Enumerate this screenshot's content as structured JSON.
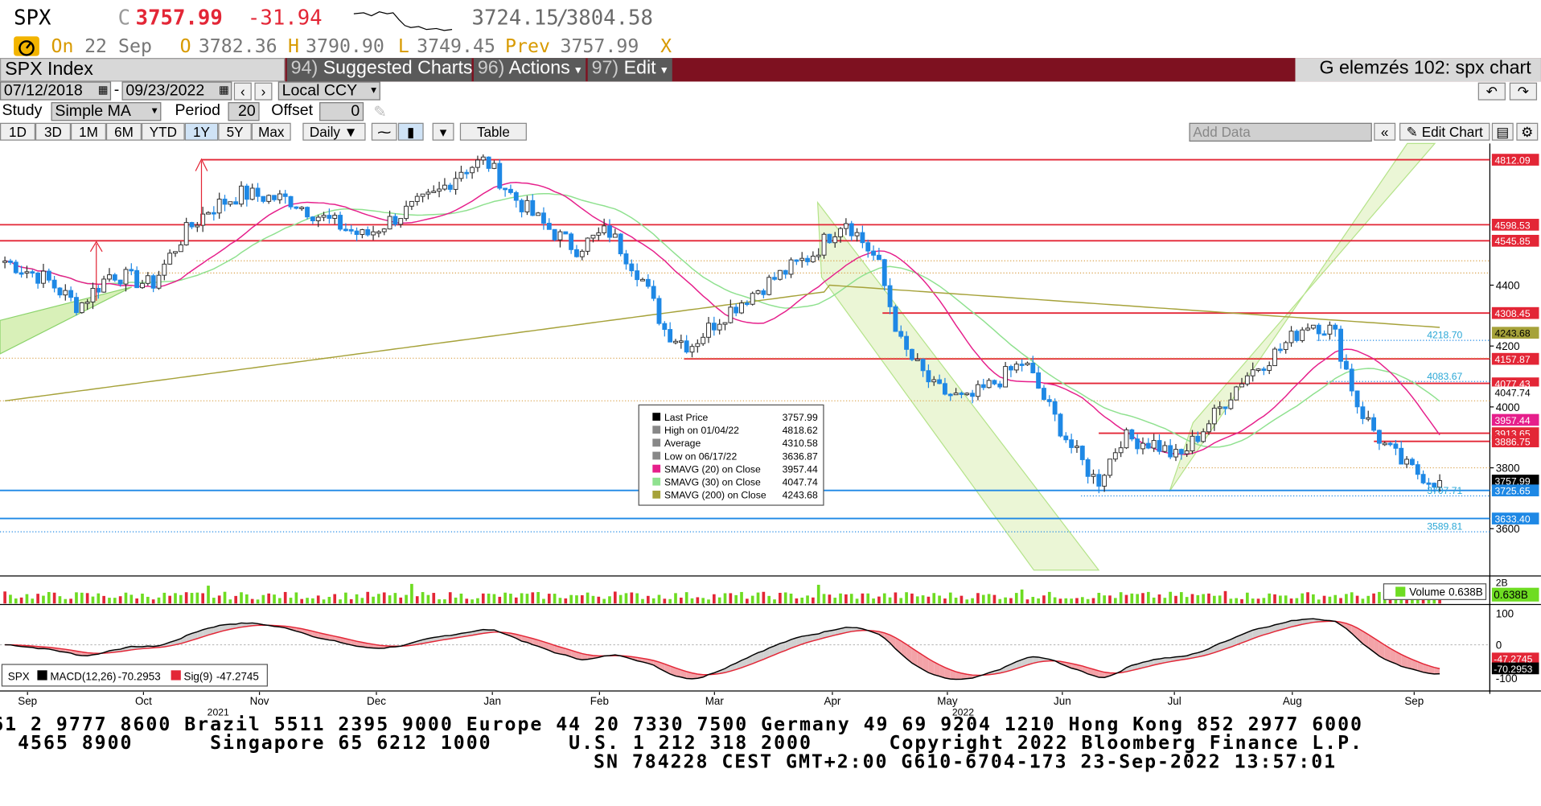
{
  "ticker": {
    "symbol": "SPX",
    "c_label": "C",
    "last": "3757.99",
    "change": "-31.94",
    "range_low": "3724.15",
    "range_sep": "/",
    "range_high": "3804.58"
  },
  "quote": {
    "on_label": "On",
    "date": "22 Sep",
    "o_label": "O",
    "open": "3782.36",
    "h_label": "H",
    "high": "3790.90",
    "l_label": "L",
    "low": "3749.45",
    "prev_label": "Prev",
    "prev": "3757.99",
    "close_x": "X"
  },
  "menu": {
    "security": "SPX Index",
    "suggested_num": "94)",
    "suggested": "Suggested Charts",
    "actions_num": "96)",
    "actions": "Actions",
    "edit_num": "97)",
    "edit": "Edit",
    "title": "G elemzés 102: spx chart"
  },
  "toolbar": {
    "date_from": "07/12/2018",
    "date_sep": "-",
    "date_to": "09/23/2022",
    "currency": "Local CCY"
  },
  "study": {
    "label": "Study",
    "value": "Simple MA",
    "period_label": "Period",
    "period": "20",
    "offset_label": "Offset",
    "offset": "0"
  },
  "ranges": [
    "1D",
    "3D",
    "1M",
    "6M",
    "YTD",
    "1Y",
    "5Y",
    "Max"
  ],
  "active_range": "1Y",
  "frequency": "Daily",
  "table_label": "Table",
  "add_data_placeholder": "Add Data",
  "edit_chart": "Edit Chart",
  "axis_labels": [
    "4400",
    "4200",
    "4000",
    "3800",
    "3600"
  ],
  "price_tags": [
    {
      "text": "4812.09",
      "bg": "#e32636",
      "fg": "#ffffff"
    },
    {
      "text": "4598.53",
      "bg": "#e32636",
      "fg": "#ffffff"
    },
    {
      "text": "4545.85",
      "bg": "#e32636",
      "fg": "#ffffff"
    },
    {
      "text": "4308.45",
      "bg": "#e32636",
      "fg": "#ffffff"
    },
    {
      "text": "4243.68",
      "bg": "#a6a23a",
      "fg": "#000000"
    },
    {
      "text": "4157.87",
      "bg": "#e32636",
      "fg": "#ffffff"
    },
    {
      "text": "4077.43",
      "bg": "#e32636",
      "fg": "#ffffff"
    },
    {
      "text": "4047.74",
      "bg": "#ffffff",
      "fg": "#000000"
    },
    {
      "text": "3957.44",
      "bg": "#e61f8b",
      "fg": "#ffffff"
    },
    {
      "text": "3913.65",
      "bg": "#e32636",
      "fg": "#ffffff"
    },
    {
      "text": "3886.75",
      "bg": "#e32636",
      "fg": "#ffffff"
    },
    {
      "text": "3757.99",
      "bg": "#000000",
      "fg": "#ffffff"
    },
    {
      "text": "3725.65",
      "bg": "#1e88e5",
      "fg": "#ffffff"
    },
    {
      "text": "3633.40",
      "bg": "#1e88e5",
      "fg": "#ffffff"
    }
  ],
  "inline_labels": [
    "4218.70",
    "4083.67",
    "3707.71",
    "3589.81"
  ],
  "legend": [
    {
      "label": "Last Price",
      "value": "3757.99"
    },
    {
      "label": "High on 01/04/22",
      "value": "4818.62"
    },
    {
      "label": "Average",
      "value": "4310.58"
    },
    {
      "label": "Low on 06/17/22",
      "value": "3636.87"
    },
    {
      "label": "SMAVG (20)  on Close",
      "value": "3957.44"
    },
    {
      "label": "SMAVG (30)  on Close",
      "value": "4047.74"
    },
    {
      "label": "SMAVG (200)  on Close",
      "value": "4243.68"
    }
  ],
  "colors": {
    "up": "#2f2f2f",
    "down": "#1e88e5",
    "ma20": "#e61f8b",
    "ma30": "#8fe18f",
    "ma200": "#a6a23a",
    "level_red": "#e32636",
    "level_blue": "#1e88e5",
    "channel": "#b5e38a",
    "header_bar": "#7e1120"
  },
  "volume": {
    "tick": "2B",
    "legend": "Volume",
    "value": "0.638B",
    "tag": "0.638B"
  },
  "macd": {
    "legend_symbol": "SPX",
    "macd_label": "MACD(12,26)",
    "macd_value": "-70.2953",
    "sig_label": "Sig(9)",
    "sig_value": "-47.2745",
    "axis": [
      "100",
      "0",
      "-100"
    ],
    "tag_macd": "-70.2953",
    "tag_sig": "-47.2745"
  },
  "months": [
    "Sep",
    "Oct",
    "Nov",
    "Dec",
    "Jan",
    "Feb",
    "Mar",
    "Apr",
    "May",
    "Jun",
    "Jul",
    "Aug",
    "Sep"
  ],
  "years": [
    "2021",
    "2022"
  ],
  "footer": {
    "line1": "61 2 9777 8600 Brazil 5511 2395 9000 Europe 44 20 7330 7500 Germany 49 69 9204 1210 Hong Kong 852 2977 6000",
    "line2": "  4565 8900      Singapore 65 6212 1000      U.S. 1 212 318 2000      Copyright 2022 Bloomberg Finance L.P.",
    "line3": "SN 784228 CEST GMT+2:00 G610-6704-173 23-Sep-2022 13:57:01"
  }
}
